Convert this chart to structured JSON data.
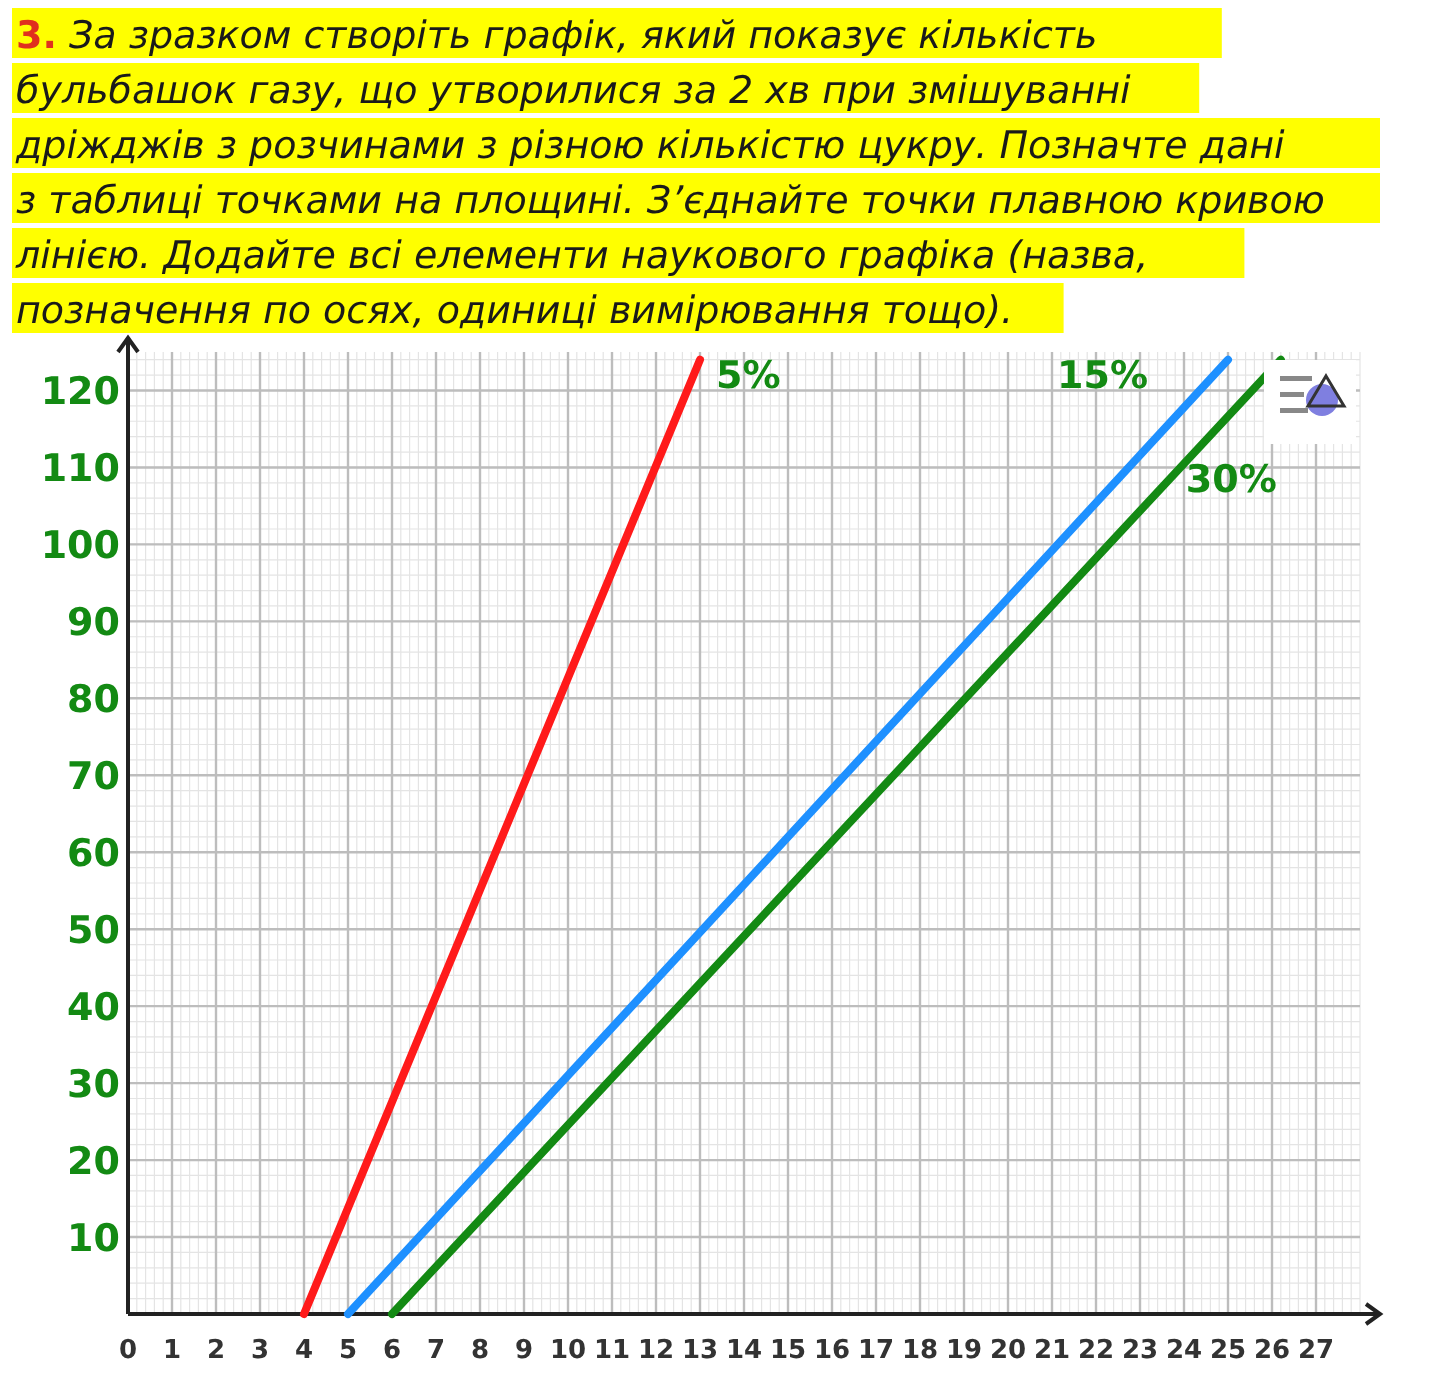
{
  "chart_data": {
    "type": "line",
    "title": "3. За зразком створіть графік, який показує кількість бульбашок газу, що утворилися за 2 хв при змішуванні дріжджів з розчинами з різною кількістю цукру. Позначте дані з таблиці точками на площині. З’єднайте точки плавною кривою лінією. Додайте всі елементи наукового графіка (назва, позначення по осях, одиниці вимірювання тощо).",
    "xlim": [
      0,
      28
    ],
    "ylim": [
      0,
      125
    ],
    "xticks": [
      0,
      1,
      2,
      3,
      4,
      5,
      6,
      7,
      8,
      9,
      10,
      11,
      12,
      13,
      14,
      15,
      16,
      17,
      18,
      19,
      20,
      21,
      22,
      23,
      24,
      25,
      26,
      27
    ],
    "yticks": [
      10,
      20,
      30,
      40,
      50,
      60,
      70,
      80,
      90,
      100,
      110,
      120
    ],
    "grid": true,
    "marker": "none",
    "line_style": "solid",
    "series": [
      {
        "name": "5%",
        "color": "#ff1a1a",
        "x": [
          4,
          13
        ],
        "values": [
          0,
          124
        ]
      },
      {
        "name": "15%",
        "color": "#1e90ff",
        "x": [
          5,
          25
        ],
        "values": [
          0,
          124
        ]
      },
      {
        "name": "30%",
        "color": "#138a13",
        "x": [
          6,
          26.2
        ],
        "values": [
          0,
          124
        ]
      }
    ]
  }
}
